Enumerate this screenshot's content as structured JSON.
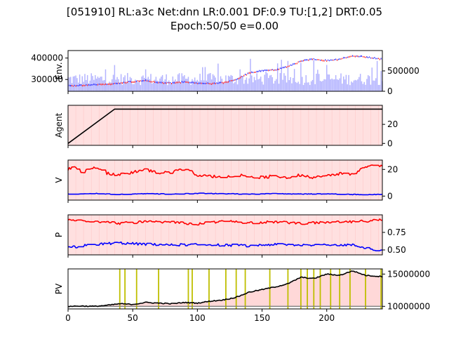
{
  "title_line1": "[051910] RL:a3c Net:dnn LR:0.001 DF:0.9 TU:[1,2] DRT:0.05",
  "title_line2": "Epoch:50/50 e=0.00",
  "chart_data": [
    {
      "type": "line",
      "panel": "env",
      "ylabel": "Env.",
      "left_ticks": [
        "300000",
        "400000"
      ],
      "right_ticks": [
        "0",
        "500000"
      ],
      "xlim": [
        0,
        243
      ],
      "ylim_left": [
        245000,
        435000
      ],
      "ylim_right": [
        0,
        1000000
      ],
      "price_anchors": [
        [
          0,
          270000
        ],
        [
          10,
          272000
        ],
        [
          20,
          276000
        ],
        [
          30,
          278000
        ],
        [
          40,
          282000
        ],
        [
          50,
          290000
        ],
        [
          60,
          295000
        ],
        [
          70,
          285000
        ],
        [
          80,
          283000
        ],
        [
          90,
          288000
        ],
        [
          100,
          282000
        ],
        [
          110,
          280000
        ],
        [
          120,
          285000
        ],
        [
          130,
          300000
        ],
        [
          140,
          330000
        ],
        [
          150,
          340000
        ],
        [
          160,
          345000
        ],
        [
          170,
          360000
        ],
        [
          180,
          385000
        ],
        [
          190,
          395000
        ],
        [
          200,
          388000
        ],
        [
          210,
          395000
        ],
        [
          220,
          410000
        ],
        [
          230,
          405000
        ],
        [
          243,
          395000
        ]
      ],
      "series": [
        {
          "name": "",
          "color": "#ff0000"
        },
        {
          "name": "",
          "color": "#0000ff"
        },
        {
          "name": "",
          "color": "#9999ff"
        }
      ]
    },
    {
      "type": "line",
      "panel": "agent",
      "ylabel": "Agent",
      "right_ticks": [
        "0",
        "20"
      ],
      "xlim": [
        0,
        243
      ],
      "ylim": [
        -2,
        40
      ],
      "series": [
        {
          "name": "",
          "x": [
            0,
            36,
            243
          ],
          "y": [
            0,
            36,
            36
          ],
          "color": "#000000"
        }
      ]
    },
    {
      "type": "line",
      "panel": "v",
      "ylabel": "V",
      "right_ticks": [
        "0",
        "20"
      ],
      "xlim": [
        0,
        243
      ],
      "ylim": [
        -3,
        27
      ],
      "series": [
        {
          "name": "",
          "color": "#ff0000",
          "anchors": [
            [
              0,
              20
            ],
            [
              5,
              22
            ],
            [
              10,
              18
            ],
            [
              20,
              21
            ],
            [
              30,
              17
            ],
            [
              40,
              16
            ],
            [
              60,
              20
            ],
            [
              70,
              17
            ],
            [
              80,
              18
            ],
            [
              90,
              21
            ],
            [
              100,
              16
            ],
            [
              110,
              15
            ],
            [
              120,
              14
            ],
            [
              130,
              16
            ],
            [
              150,
              14
            ],
            [
              160,
              15
            ],
            [
              170,
              14
            ],
            [
              180,
              16
            ],
            [
              190,
              14
            ],
            [
              200,
              15
            ],
            [
              210,
              17
            ],
            [
              220,
              16
            ],
            [
              230,
              22
            ],
            [
              243,
              23
            ]
          ]
        },
        {
          "name": "",
          "color": "#0000ff",
          "anchors": [
            [
              0,
              1.5
            ],
            [
              20,
              2
            ],
            [
              40,
              1.2
            ],
            [
              60,
              1.8
            ],
            [
              80,
              1.5
            ],
            [
              100,
              2
            ],
            [
              120,
              1.8
            ],
            [
              140,
              1.5
            ],
            [
              160,
              1.8
            ],
            [
              180,
              1.5
            ],
            [
              200,
              1.7
            ],
            [
              220,
              1.2
            ],
            [
              243,
              1.2
            ]
          ]
        }
      ]
    },
    {
      "type": "line",
      "panel": "p",
      "ylabel": "P",
      "right_ticks": [
        "0.50",
        "0.75"
      ],
      "xlim": [
        0,
        243
      ],
      "ylim": [
        0.43,
        1.0
      ],
      "series": [
        {
          "name": "",
          "color": "#ff0000",
          "anchors": [
            [
              0,
              0.93
            ],
            [
              20,
              0.91
            ],
            [
              40,
              0.88
            ],
            [
              60,
              0.9
            ],
            [
              80,
              0.89
            ],
            [
              100,
              0.87
            ],
            [
              120,
              0.91
            ],
            [
              140,
              0.89
            ],
            [
              160,
              0.9
            ],
            [
              180,
              0.88
            ],
            [
              200,
              0.89
            ],
            [
              220,
              0.9
            ],
            [
              243,
              0.93
            ]
          ]
        },
        {
          "name": "",
          "color": "#0000ff",
          "anchors": [
            [
              0,
              0.53
            ],
            [
              20,
              0.58
            ],
            [
              40,
              0.6
            ],
            [
              60,
              0.58
            ],
            [
              80,
              0.57
            ],
            [
              100,
              0.58
            ],
            [
              120,
              0.57
            ],
            [
              140,
              0.56
            ],
            [
              160,
              0.58
            ],
            [
              180,
              0.57
            ],
            [
              200,
              0.58
            ],
            [
              220,
              0.57
            ],
            [
              243,
              0.48
            ]
          ]
        }
      ]
    },
    {
      "type": "line",
      "panel": "pv",
      "ylabel": "PV",
      "right_ticks": [
        "10000000",
        "15000000"
      ],
      "x_ticks": [
        "0",
        "50",
        "100",
        "150",
        "200"
      ],
      "x_tick_values": [
        0,
        50,
        100,
        150,
        200
      ],
      "xlim": [
        0,
        243
      ],
      "ylim": [
        9600000,
        15800000
      ],
      "baseline": 10000000,
      "trade_markers_x": [
        40,
        44,
        53,
        70,
        93,
        96,
        109,
        122,
        130,
        137,
        156,
        170,
        180,
        185,
        190,
        195,
        203,
        210,
        218,
        230,
        242
      ],
      "series": [
        {
          "name": "",
          "color": "#000000",
          "anchors": [
            [
              0,
              10000000
            ],
            [
              10,
              10050000
            ],
            [
              20,
              10000000
            ],
            [
              30,
              10150000
            ],
            [
              40,
              10400000
            ],
            [
              50,
              10300000
            ],
            [
              60,
              10600000
            ],
            [
              70,
              10500000
            ],
            [
              80,
              10400000
            ],
            [
              90,
              10600000
            ],
            [
              100,
              10500000
            ],
            [
              110,
              10800000
            ],
            [
              120,
              11000000
            ],
            [
              130,
              11400000
            ],
            [
              140,
              12200000
            ],
            [
              150,
              12600000
            ],
            [
              160,
              13000000
            ],
            [
              170,
              13500000
            ],
            [
              180,
              14500000
            ],
            [
              190,
              14300000
            ],
            [
              200,
              15000000
            ],
            [
              210,
              14800000
            ],
            [
              220,
              15500000
            ],
            [
              230,
              14800000
            ],
            [
              243,
              14600000
            ]
          ]
        },
        {
          "name": "",
          "color": "#808080",
          "anchors": [
            [
              0,
              10000000
            ],
            [
              243,
              10000000
            ]
          ]
        }
      ]
    }
  ]
}
